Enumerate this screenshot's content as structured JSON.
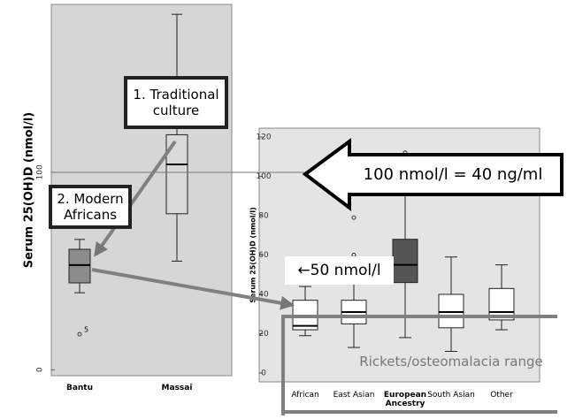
{
  "chart_data": [
    {
      "type": "box",
      "y_label": "Serum 25(OH)D (nmol/l)",
      "categories": [
        "Bantu",
        "Massai"
      ],
      "boxes": [
        {
          "whisker_low": 39,
          "q1": 44,
          "median": 53,
          "q3": 61,
          "whisker_high": 66,
          "outliers": [
            18
          ],
          "outlier_label": "5",
          "color": "#8c8c8c"
        },
        {
          "whisker_low": 55,
          "q1": 79,
          "median": 104,
          "q3": 119,
          "whisker_high": 180,
          "outliers": [],
          "color": "#d9d9d9"
        }
      ],
      "ylim": [
        -3,
        185
      ],
      "yticks": [
        0,
        100
      ],
      "background": "#d6d6d6"
    },
    {
      "type": "box",
      "y_label": "Serum 25(OH)D (nmol/l)",
      "categories": [
        "African",
        "East Asian",
        "European Ancestry",
        "South Asian",
        "Other"
      ],
      "boxes": [
        {
          "whisker_low": 19,
          "q1": 22,
          "median": 24,
          "q3": 37,
          "whisker_high": 44,
          "outliers": [],
          "color": "#ffffff"
        },
        {
          "whisker_low": 13,
          "q1": 25,
          "median": 31,
          "q3": 37,
          "whisker_high": 55,
          "outliers": [
            79,
            60
          ],
          "color": "#ffffff"
        },
        {
          "whisker_low": 18,
          "q1": 46,
          "median": 55,
          "q3": 68,
          "whisker_high": 92,
          "outliers": [
            112
          ],
          "color": "#555555"
        },
        {
          "whisker_low": 11,
          "q1": 23,
          "median": 31,
          "q3": 40,
          "whisker_high": 59,
          "outliers": [],
          "color": "#ffffff"
        },
        {
          "whisker_low": 22,
          "q1": 27,
          "median": 31,
          "q3": 43,
          "whisker_high": 55,
          "outliers": [],
          "color": "#ffffff"
        }
      ],
      "ylim": [
        -4.5,
        124.5
      ],
      "yticks": [
        0,
        20,
        40,
        60,
        80,
        100,
        120
      ],
      "background": "#e4e4e4"
    }
  ],
  "annotations": {
    "traditional": "1. Traditional culture",
    "modern": "2. Modern Africans",
    "conversion": "100 nmol/l = 40 ng/ml",
    "fifty": "←50 nmol/l",
    "rickets": "Rickets/osteomalacia range"
  }
}
